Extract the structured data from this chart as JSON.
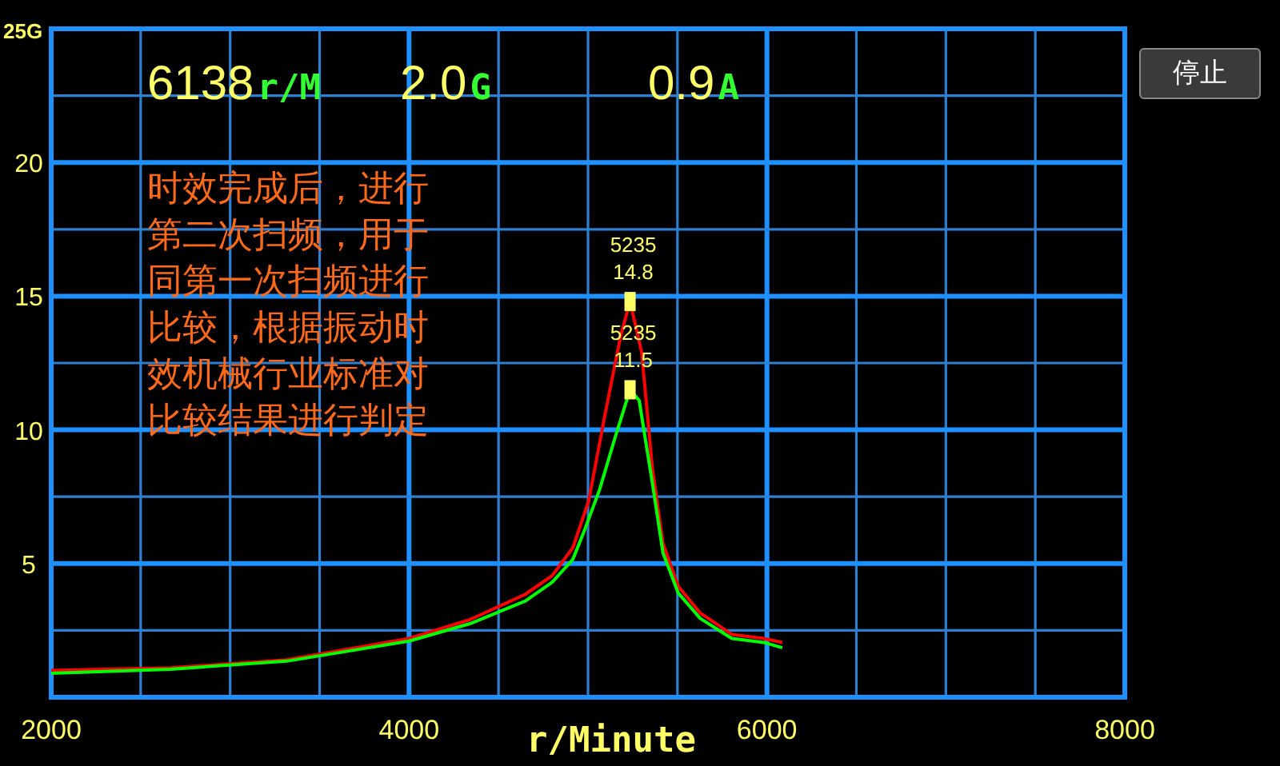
{
  "chart_data": {
    "type": "line",
    "xlabel": "r/Minute",
    "xlim": [
      2000,
      8000
    ],
    "xticks": [
      2000,
      {
        "value": 2500,
        "label": null
      },
      {
        "value": 3000,
        "label": null
      },
      {
        "value": 3500,
        "label": null
      },
      4000,
      {
        "value": 4500,
        "label": null
      },
      {
        "value": 5000,
        "label": null
      },
      {
        "value": 5500,
        "label": null
      },
      6000,
      {
        "value": 6500,
        "label": null
      },
      {
        "value": 7000,
        "label": null
      },
      {
        "value": 7500,
        "label": null
      },
      8000
    ],
    "ylim": [
      0,
      25
    ],
    "yticks": [
      {
        "value": 2.5,
        "label": null
      },
      5,
      {
        "value": 7.5,
        "label": null
      },
      10,
      {
        "value": 12.5,
        "label": null
      },
      15,
      {
        "value": 17.5,
        "label": null
      },
      20,
      {
        "value": 22.5,
        "label": null
      },
      {
        "value": 25,
        "label": "25G"
      }
    ],
    "grid": true,
    "marker": "none",
    "line_style": "solid",
    "series": [
      {
        "color": "#ff0000",
        "x": [
          2000,
          2667,
          3316,
          4000,
          4340,
          4650,
          4800,
          4916,
          5004,
          5093,
          5182,
          5235,
          5300,
          5360,
          5419,
          5504,
          5627,
          5804,
          5982,
          6086
        ],
        "values": [
          1.0,
          1.1,
          1.4,
          2.2,
          2.9,
          3.85,
          4.55,
          5.6,
          7.35,
          10.5,
          13.5,
          14.8,
          12.9,
          8.55,
          5.75,
          4.15,
          3.15,
          2.35,
          2.2,
          2.05
        ]
      },
      {
        "color": "#00ff00",
        "x": [
          2000,
          2667,
          3316,
          4000,
          4340,
          4650,
          4800,
          4915,
          4975,
          5064,
          5153,
          5235,
          5286,
          5360,
          5419,
          5504,
          5627,
          5804,
          5982,
          6086
        ],
        "values": [
          0.9,
          1.05,
          1.35,
          2.1,
          2.75,
          3.6,
          4.3,
          5.15,
          6.15,
          7.75,
          9.75,
          11.5,
          11.1,
          8.0,
          5.4,
          3.9,
          2.95,
          2.2,
          2.05,
          1.85
        ]
      }
    ],
    "annotations": [
      "6138",
      "r/M",
      "2.0",
      "G",
      "0.9",
      "A",
      "时效完成后，进行第二次扫频，用于同第一次扫频进行比较，根据振动时效机械行业标准对比较结果进行判定",
      "停止",
      {
        "text": "5235 14.8",
        "x": 5235,
        "y": 14.8
      },
      {
        "text": "5235 11.5",
        "x": 5235,
        "y": 11.5
      }
    ]
  }
}
